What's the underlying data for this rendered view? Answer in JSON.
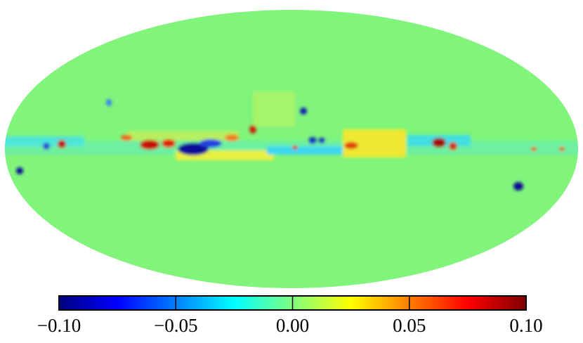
{
  "colorbar": {
    "colormap": "jet",
    "lim": [
      -0.1,
      0.1
    ],
    "ticks": [
      {
        "value": -0.1,
        "label": "−0.10"
      },
      {
        "value": -0.05,
        "label": "−0.05"
      },
      {
        "value": 0,
        "label": "0.00"
      },
      0.05,
      {
        "value": 0.1,
        "label": "0.10"
      }
    ]
  }
}
